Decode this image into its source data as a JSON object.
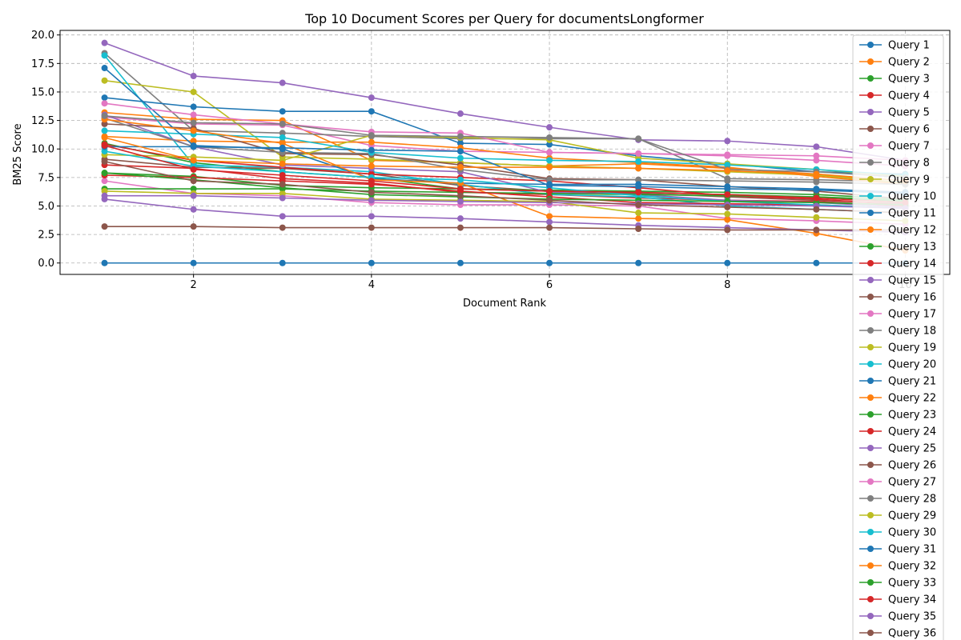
{
  "chart_data": {
    "type": "line",
    "title": "Top 10 Document Scores per Query for documentsLongformer",
    "xlabel": "Document Rank",
    "ylabel": "BM25 Score",
    "xlim": [
      0.5,
      10.5
    ],
    "ylim": [
      -1.0,
      20.4
    ],
    "xticks": [
      "2",
      "4",
      "6",
      "8",
      "10"
    ],
    "yticks": [
      "0.0",
      "2.5",
      "5.0",
      "7.5",
      "10.0",
      "12.5",
      "15.0",
      "17.5",
      "20.0"
    ],
    "grid": true,
    "legend_position": "right",
    "x": [
      1,
      2,
      3,
      4,
      5,
      6,
      7,
      8,
      9,
      10
    ],
    "series": [
      {
        "name": "Query 1",
        "color": "#1f77b4",
        "values": [
          0,
          0,
          0,
          0,
          0,
          0,
          0,
          0,
          0,
          0
        ]
      },
      {
        "name": "Query 2",
        "color": "#ff7f0e",
        "values": [
          13.2,
          12.6,
          12.5,
          9.0,
          8.8,
          8.5,
          8.7,
          8.3,
          7.8,
          7.0
        ]
      },
      {
        "name": "Query 3",
        "color": "#2ca02c",
        "values": [
          10.5,
          8.8,
          8.0,
          7.5,
          6.5,
          6.3,
          6.2,
          6.0,
          5.8,
          5.5
        ]
      },
      {
        "name": "Query 4",
        "color": "#d62728",
        "values": [
          8.6,
          8.3,
          7.4,
          7.0,
          6.2,
          6.0,
          5.7,
          5.5,
          5.4,
          5.0
        ]
      },
      {
        "name": "Query 5",
        "color": "#9467bd",
        "values": [
          19.3,
          16.4,
          15.8,
          14.5,
          13.1,
          11.9,
          10.8,
          10.7,
          10.2,
          9.0
        ]
      },
      {
        "name": "Query 6",
        "color": "#8c564b",
        "values": [
          9.1,
          8.4,
          8.3,
          7.8,
          6.8,
          6.3,
          6.1,
          5.8,
          5.5,
          5.2
        ]
      },
      {
        "name": "Query 7",
        "color": "#e377c2",
        "values": [
          12.8,
          12.2,
          12.1,
          10.3,
          9.8,
          9.7,
          9.6,
          9.4,
          9.0,
          8.5
        ]
      },
      {
        "name": "Query 8",
        "color": "#7f7f7f",
        "values": [
          18.4,
          11.6,
          11.4,
          11.1,
          10.9,
          10.9,
          10.9,
          7.4,
          7.3,
          7.1
        ]
      },
      {
        "name": "Query 9",
        "color": "#bcbd22",
        "values": [
          16.0,
          15.0,
          9.3,
          9.1,
          8.8,
          8.5,
          8.3,
          8.0,
          7.7,
          7.0
        ]
      },
      {
        "name": "Query 10",
        "color": "#17becf",
        "values": [
          18.2,
          8.6,
          8.4,
          8.0,
          6.9,
          6.0,
          5.8,
          5.0,
          4.7,
          4.4
        ]
      },
      {
        "name": "Query 11",
        "color": "#1f77b4",
        "values": [
          14.5,
          13.7,
          13.3,
          13.3,
          10.5,
          10.4,
          9.4,
          8.7,
          8.0,
          7.8
        ]
      },
      {
        "name": "Query 12",
        "color": "#ff7f0e",
        "values": [
          11.1,
          10.7,
          10.6,
          10.6,
          10.1,
          9.2,
          8.8,
          8.4,
          7.6,
          6.9
        ]
      },
      {
        "name": "Query 13",
        "color": "#2ca02c",
        "values": [
          7.9,
          7.6,
          6.8,
          6.6,
          6.5,
          6.4,
          6.3,
          6.2,
          6.0,
          5.6
        ]
      },
      {
        "name": "Query 14",
        "color": "#d62728",
        "values": [
          10.4,
          9.0,
          8.4,
          7.8,
          7.5,
          7.2,
          6.6,
          5.9,
          5.6,
          5.1
        ]
      },
      {
        "name": "Query 15",
        "color": "#9467bd",
        "values": [
          13.0,
          10.2,
          8.6,
          8.3,
          8.0,
          6.2,
          6.0,
          5.5,
          5.3,
          4.9
        ]
      },
      {
        "name": "Query 16",
        "color": "#8c564b",
        "values": [
          12.2,
          11.8,
          9.6,
          9.5,
          8.6,
          7.4,
          7.3,
          6.7,
          6.3,
          5.6
        ]
      },
      {
        "name": "Query 17",
        "color": "#e377c2",
        "values": [
          7.2,
          6.1,
          5.9,
          5.3,
          5.1,
          5.1,
          5.0,
          3.9,
          3.7,
          3.4
        ]
      },
      {
        "name": "Query 18",
        "color": "#7f7f7f",
        "values": [
          12.7,
          10.2,
          9.7,
          9.6,
          8.2,
          7.3,
          7.3,
          7.2,
          7.1,
          6.9
        ]
      },
      {
        "name": "Query 19",
        "color": "#bcbd22",
        "values": [
          9.5,
          9.3,
          9.0,
          11.2,
          11.0,
          10.8,
          9.2,
          8.7,
          8.2,
          7.6
        ]
      },
      {
        "name": "Query 20",
        "color": "#17becf",
        "values": [
          11.6,
          11.3,
          11.0,
          9.7,
          9.2,
          9.0,
          8.9,
          8.6,
          8.2,
          7.7
        ]
      },
      {
        "name": "Query 21",
        "color": "#1f77b4",
        "values": [
          17.1,
          10.3,
          10.0,
          7.4,
          7.0,
          6.9,
          6.9,
          6.7,
          6.5,
          6.2
        ]
      },
      {
        "name": "Query 22",
        "color": "#ff7f0e",
        "values": [
          12.6,
          11.6,
          10.5,
          7.3,
          7.0,
          4.1,
          3.9,
          3.8,
          2.6,
          1.1
        ]
      },
      {
        "name": "Query 23",
        "color": "#2ca02c",
        "values": [
          6.5,
          6.5,
          6.5,
          6.3,
          6.2,
          6.1,
          6.0,
          5.9,
          5.8,
          5.4
        ]
      },
      {
        "name": "Query 24",
        "color": "#d62728",
        "values": [
          7.7,
          7.5,
          7.2,
          6.9,
          6.3,
          5.8,
          5.3,
          5.2,
          5.1,
          4.8
        ]
      },
      {
        "name": "Query 25",
        "color": "#9467bd",
        "values": [
          5.6,
          4.7,
          4.1,
          4.1,
          3.9,
          3.6,
          3.3,
          3.1,
          2.9,
          2.7
        ]
      },
      {
        "name": "Query 26",
        "color": "#8c564b",
        "values": [
          3.2,
          3.2,
          3.1,
          3.1,
          3.1,
          3.1,
          3.0,
          2.9,
          2.9,
          2.9
        ]
      },
      {
        "name": "Query 27",
        "color": "#e377c2",
        "values": [
          14.0,
          13.0,
          12.2,
          11.5,
          11.4,
          9.7,
          9.6,
          9.5,
          9.4,
          9.0
        ]
      },
      {
        "name": "Query 28",
        "color": "#7f7f7f",
        "values": [
          12.9,
          12.3,
          12.2,
          11.2,
          11.1,
          11.0,
          10.9,
          8.2,
          8.0,
          7.5
        ]
      },
      {
        "name": "Query 29",
        "color": "#bcbd22",
        "values": [
          6.3,
          6.1,
          6.1,
          5.6,
          5.5,
          5.4,
          4.4,
          4.3,
          4.0,
          3.7
        ]
      },
      {
        "name": "Query 30",
        "color": "#17becf",
        "values": [
          9.8,
          8.5,
          8.0,
          7.5,
          7.3,
          6.6,
          5.9,
          5.4,
          5.1,
          4.8
        ]
      },
      {
        "name": "Query 31",
        "color": "#1f77b4",
        "values": [
          10.2,
          10.2,
          10.1,
          9.9,
          9.8,
          6.8,
          6.7,
          6.5,
          6.4,
          6.1
        ]
      },
      {
        "name": "Query 32",
        "color": "#ff7f0e",
        "values": [
          11.0,
          9.0,
          8.7,
          8.5,
          8.4,
          8.4,
          8.3,
          8.1,
          7.8,
          7.2
        ]
      },
      {
        "name": "Query 33",
        "color": "#2ca02c",
        "values": [
          7.9,
          7.3,
          6.6,
          6.0,
          5.8,
          5.6,
          5.5,
          5.4,
          5.3,
          5.1
        ]
      },
      {
        "name": "Query 34",
        "color": "#d62728",
        "values": [
          10.3,
          8.2,
          7.7,
          7.2,
          6.5,
          6.3,
          6.2,
          6.0,
          5.7,
          5.3
        ]
      },
      {
        "name": "Query 35",
        "color": "#9467bd",
        "values": [
          5.9,
          5.9,
          5.7,
          5.5,
          5.4,
          5.3,
          5.2,
          5.1,
          5.0,
          4.8
        ]
      },
      {
        "name": "Query 36",
        "color": "#8c564b",
        "values": [
          8.9,
          7.2,
          6.9,
          6.2,
          5.9,
          5.5,
          5.1,
          4.9,
          4.7,
          4.4
        ]
      }
    ]
  }
}
